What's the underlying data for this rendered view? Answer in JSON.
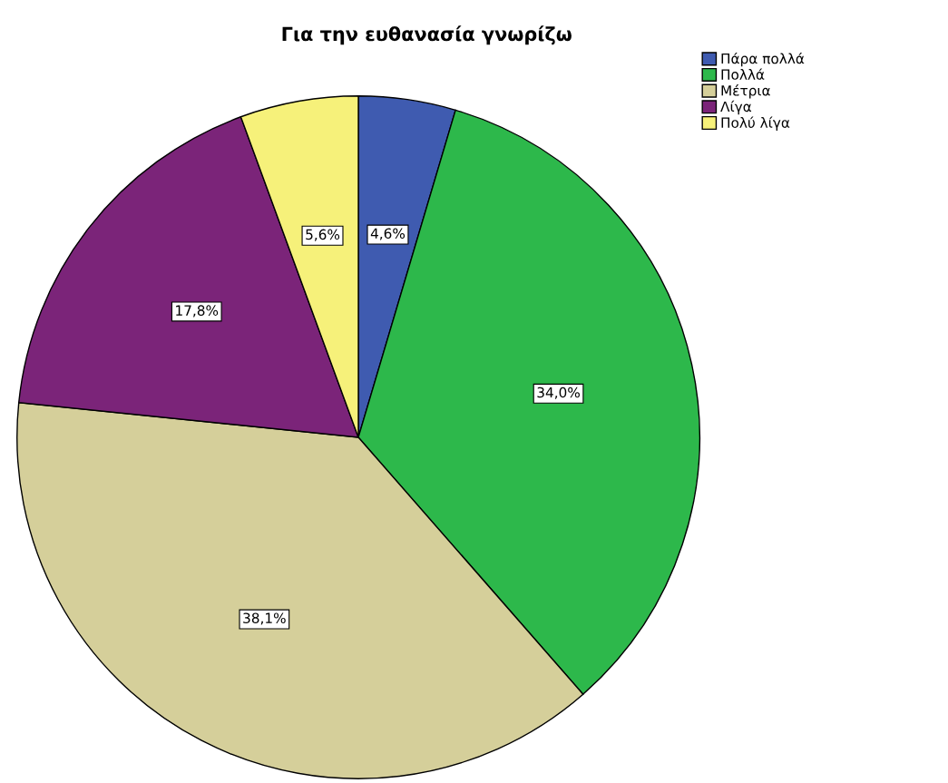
{
  "chart_data": {
    "type": "pie",
    "title": "Για την ευθανασία γνωρίζω",
    "categories": [
      "Πάρα πολλά",
      "Πολλά",
      "Μέτρια",
      "Λίγα",
      "Πολύ λίγα"
    ],
    "values": [
      4.6,
      34.0,
      38.1,
      17.8,
      5.6
    ],
    "value_labels": [
      "4,6%",
      "34,0%",
      "38,1%",
      "17,8%",
      "5,6%"
    ],
    "colors": [
      "#3f5bb0",
      "#2db84b",
      "#d5cf9a",
      "#7b2479",
      "#f6f17a"
    ],
    "legend": "top right"
  }
}
